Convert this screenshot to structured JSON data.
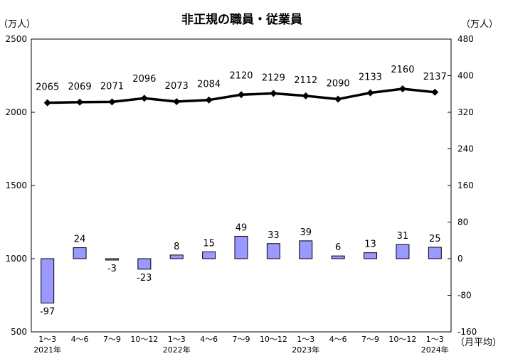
{
  "chart_data": {
    "type": "bar+line",
    "title": "非正規の職員・従業員",
    "left_unit": "（万人）",
    "right_unit": "（万人）",
    "x_suffix": "（月平均）",
    "categories": [
      "1～3",
      "4～6",
      "7～9",
      "10～12",
      "1～3",
      "4～6",
      "7～9",
      "10～12",
      "1～3",
      "4～6",
      "7～9",
      "10～12",
      "1～3"
    ],
    "year_labels": [
      "2021年",
      "",
      "",
      "",
      "2022年",
      "",
      "",
      "",
      "2023年",
      "",
      "",
      "",
      "2024年"
    ],
    "series": [
      {
        "type": "line",
        "axis": "left",
        "values": [
          2065,
          2069,
          2071,
          2096,
          2073,
          2084,
          2120,
          2129,
          2112,
          2090,
          2133,
          2160,
          2137
        ]
      },
      {
        "type": "bar",
        "axis": "right",
        "values": [
          -97,
          24,
          -3,
          -23,
          8,
          15,
          49,
          33,
          39,
          6,
          13,
          31,
          25
        ]
      }
    ],
    "left_axis": {
      "ylim": [
        500,
        2500
      ],
      "ticks": [
        500,
        1000,
        1500,
        2000,
        2500
      ]
    },
    "right_axis": {
      "ylim": [
        -160,
        480
      ],
      "ticks": [
        "-160",
        "-80",
        "0",
        "80",
        "160",
        "240",
        "320",
        "400",
        "480"
      ]
    },
    "colors": {
      "bar": "#9999ff",
      "bar_stroke": "#000000",
      "line": "#000000"
    }
  }
}
